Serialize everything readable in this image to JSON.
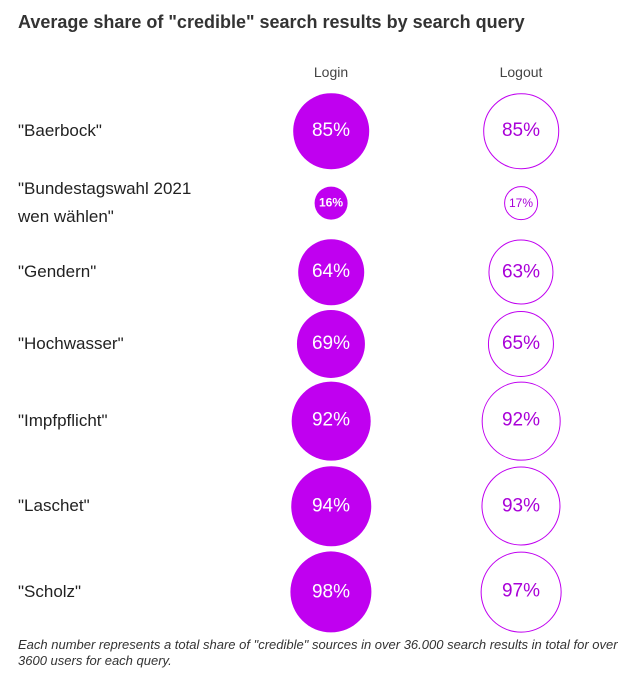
{
  "title": "Average share of \"credible\" search results by search query",
  "colors": {
    "accent": "#c000f0",
    "accent_text": "#a900d8"
  },
  "chart_data": {
    "type": "bubble-table",
    "title": "Average share of \"credible\" search results by search query",
    "unit": "%",
    "columns": [
      "Login",
      "Logout"
    ],
    "categories": [
      "\"Baerbock\"",
      "\"Bundestagswahl 2021 wen wählen\"",
      "\"Gendern\"",
      "\"Hochwasser\"",
      "\"Impfpflicht\"",
      "\"Laschet\"",
      "\"Scholz\""
    ],
    "rows": [
      {
        "label_lines": [
          "\"Baerbock\""
        ],
        "login": 85,
        "logout": 85
      },
      {
        "label_lines": [
          "\"Bundestagswahl 2021",
          "wen wählen\""
        ],
        "login": 16,
        "logout": 17
      },
      {
        "label_lines": [
          "\"Gendern\""
        ],
        "login": 64,
        "logout": 63
      },
      {
        "label_lines": [
          "\"Hochwasser\""
        ],
        "login": 69,
        "logout": 65
      },
      {
        "label_lines": [
          "\"Impfpflicht\""
        ],
        "login": 92,
        "logout": 92
      },
      {
        "label_lines": [
          "\"Laschet\""
        ],
        "login": 94,
        "logout": 93
      },
      {
        "label_lines": [
          "\"Scholz\""
        ],
        "login": 98,
        "logout": 97
      }
    ]
  },
  "footnote": "Each number represents a total share of \"credible\" sources in over 36.000 search results in total for over 3600 users for each query."
}
